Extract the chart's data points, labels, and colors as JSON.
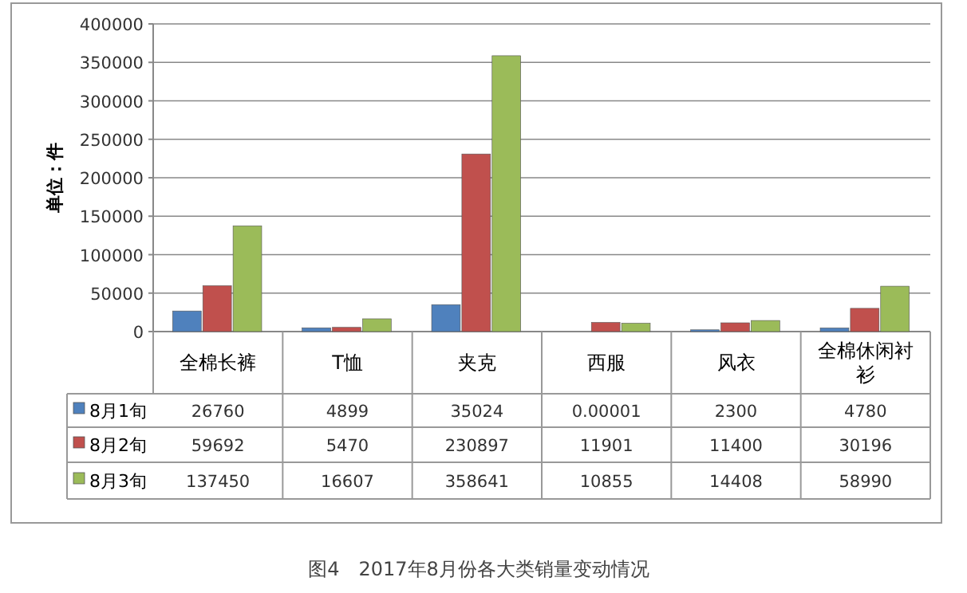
{
  "chart_data": {
    "type": "bar",
    "ylabel": "单位：件",
    "categories": [
      "全棉长裤",
      "T恤",
      "夹克",
      "西服",
      "风衣",
      "全棉休闲衬衫"
    ],
    "series": [
      {
        "name": "8月1旬",
        "color": "#4f81bd",
        "values": [
          26760,
          4899,
          35024,
          1e-05,
          2300,
          4780
        ],
        "value_labels": [
          "26760",
          "4899",
          "35024",
          "0.00001",
          "2300",
          "4780"
        ]
      },
      {
        "name": "8月2旬",
        "color": "#c0504d",
        "values": [
          59692,
          5470,
          230897,
          11901,
          11400,
          30196
        ],
        "value_labels": [
          "59692",
          "5470",
          "230897",
          "11901",
          "11400",
          "30196"
        ]
      },
      {
        "name": "8月3旬",
        "color": "#9bbb59",
        "values": [
          137450,
          16607,
          358641,
          10855,
          14408,
          58990
        ],
        "value_labels": [
          "137450",
          "16607",
          "358641",
          "10855",
          "14408",
          "58990"
        ]
      }
    ],
    "ylim": [
      0,
      400000
    ],
    "yticks": [
      0,
      50000,
      100000,
      150000,
      200000,
      250000,
      300000,
      350000,
      400000
    ],
    "grid": "y",
    "legend": "bottom left",
    "annotations": [
      "图4　2017年8月份各大类销量变动情况"
    ]
  }
}
